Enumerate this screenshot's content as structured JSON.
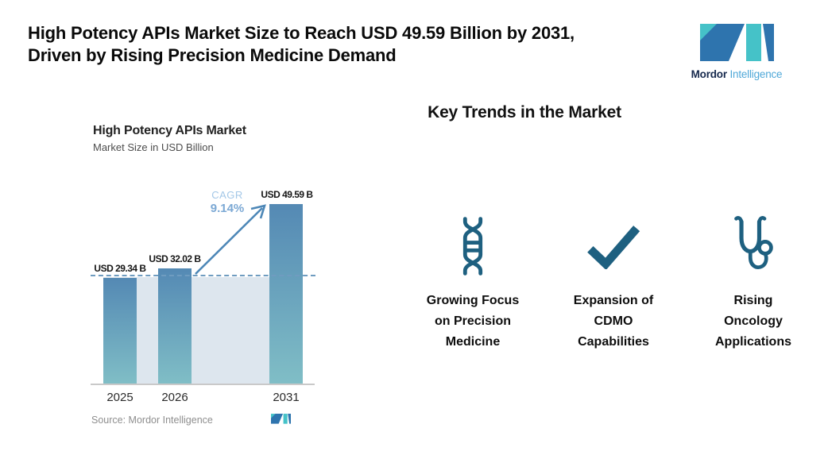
{
  "header": {
    "title_line1": "High Potency APIs Market Size to Reach USD 49.59 Billion by 2031,",
    "title_line2": "Driven by Rising Precision Medicine Demand"
  },
  "brand": {
    "name_bold": "Mordor",
    "name_light": "Intelligence"
  },
  "chart": {
    "title": "High Potency APIs Market",
    "subtitle": "Market Size in USD Billion",
    "cagr_label": "CAGR",
    "cagr_value": "9.14%",
    "source": "Source: Mordor Intelligence",
    "bars": [
      {
        "year": "2025",
        "label": "USD 29.34 B",
        "value": 29.34
      },
      {
        "year": "2026",
        "label": "USD 32.02 B",
        "value": 32.02
      },
      {
        "year": "2031",
        "label": "USD 49.59 B",
        "value": 49.59
      }
    ]
  },
  "chart_data": {
    "type": "bar",
    "title": "High Potency APIs Market",
    "subtitle": "Market Size in USD Billion",
    "unit": "USD Billion",
    "categories": [
      "2025",
      "2026",
      "2031"
    ],
    "values": [
      29.34,
      32.02,
      49.59
    ],
    "bar_labels": [
      "USD 29.34 B",
      "USD 32.02 B",
      "USD 49.59 B"
    ],
    "annotations": [
      "CAGR 9.14%",
      "dashed reference line at 2025 level"
    ],
    "ylim": [
      0,
      55
    ],
    "grid": "off",
    "legend": "none",
    "source": "Source: Mordor Intelligence"
  },
  "trends": {
    "heading": "Key Trends in the Market",
    "items": [
      {
        "icon": "dna-icon",
        "label": "Growing Focus on Precision Medicine",
        "lines": [
          "Growing Focus",
          "on Precision",
          "Medicine"
        ]
      },
      {
        "icon": "checkmark-icon",
        "label": "Expansion of CDMO Capabilities",
        "lines": [
          "Expansion of",
          "CDMO",
          "Capabilities"
        ]
      },
      {
        "icon": "stethoscope-icon",
        "label": "Rising Oncology Applications",
        "lines": [
          "Rising",
          "Oncology",
          "Applications"
        ]
      }
    ]
  },
  "colors": {
    "bar_top": "#5489B4",
    "bar_bottom": "#80BEC6",
    "plot_fill": "#DDE6EE",
    "dashed_line": "#6F9CC0",
    "arrow": "#4D87B7",
    "cagr_label": "#A3C7E7",
    "cagr_value": "#7BA8D4",
    "trend_icon": "#1E6080",
    "brand_teal": "#45C2C8",
    "brand_blue": "#2E74AE",
    "brand_navy": "#16294D",
    "brand_light_blue": "#4FA8D8"
  }
}
